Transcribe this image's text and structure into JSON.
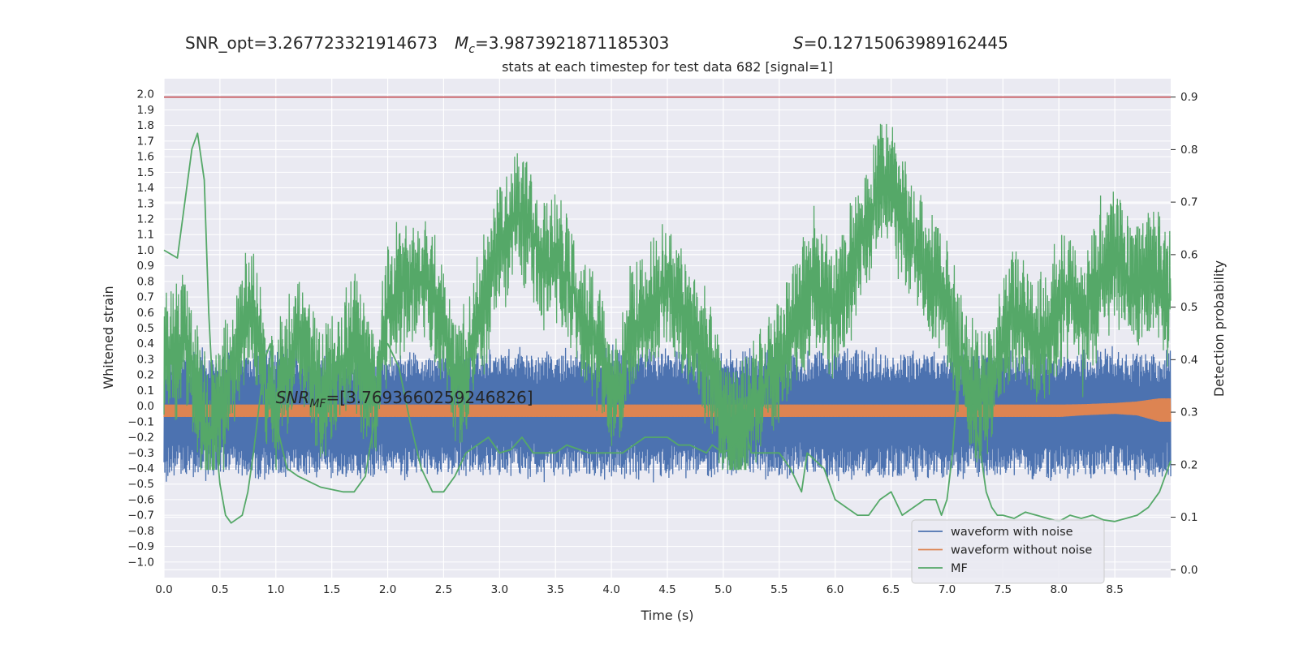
{
  "chart_data": {
    "type": "line",
    "suptitle": {
      "snr_opt": "SNR_opt=3.267723321914673",
      "mc_symbol": "M",
      "mc_sub": "c",
      "mc_value": "=3.9873921871185303",
      "s_symbol": "S",
      "s_value": "=0.12715063989162445"
    },
    "title": "stats at each timestep for test data 682 [signal=1]",
    "xlabel": "Time (s)",
    "ylabel_left": "Whitened strain",
    "ylabel_right": "Detection probability",
    "annotation": {
      "symbol": "SNR",
      "sub": "MF",
      "value": "=[3.7693660259246826]",
      "x": 1.0,
      "y": 0.02
    },
    "xlim": [
      0.0,
      9.0
    ],
    "x_ticks": [
      "0.0",
      "0.5",
      "1.0",
      "1.5",
      "2.0",
      "2.5",
      "3.0",
      "3.5",
      "4.0",
      "4.5",
      "5.0",
      "5.5",
      "6.0",
      "6.5",
      "7.0",
      "7.5",
      "8.0",
      "8.5"
    ],
    "ylim_left": [
      -1.1,
      2.1
    ],
    "y_ticks_left": [
      "-1.0",
      "-0.9",
      "-0.8",
      "-0.7",
      "-0.6",
      "-0.5",
      "-0.4",
      "-0.3",
      "-0.2",
      "-0.1",
      "0.0",
      "0.1",
      "0.2",
      "0.3",
      "0.4",
      "0.5",
      "0.6",
      "0.7",
      "0.8",
      "0.9",
      "1.0",
      "1.1",
      "1.2",
      "1.3",
      "1.4",
      "1.5",
      "1.6",
      "1.7",
      "1.8",
      "1.9",
      "2.0"
    ],
    "ylim_right": [
      -0.015,
      0.935
    ],
    "y_ticks_right": [
      "0.0",
      "0.1",
      "0.2",
      "0.3",
      "0.4",
      "0.5",
      "0.6",
      "0.7",
      "0.8",
      "0.9"
    ],
    "threshold": 0.9,
    "grid": true,
    "legend_position": "lower right",
    "legend": [
      {
        "label": "waveform with noise",
        "color": "#4c72b0"
      },
      {
        "label": "waveform without noise",
        "color": "#dd8452"
      },
      {
        "label": "MF",
        "color": "#55a868"
      }
    ],
    "colors": {
      "noise": "#4c72b0",
      "clean": "#dd8452",
      "mf": "#55a868",
      "prob": "#55a868",
      "threshold": "#c44e52",
      "background": "#eaeaf2",
      "grid": "#ffffff"
    },
    "series": [
      {
        "name": "waveform with noise",
        "axis": "left",
        "envelope": {
          "x": [
            0.0,
            4.5,
            9.0
          ],
          "upper": [
            0.35,
            0.35,
            0.35
          ],
          "lower": [
            -0.45,
            -0.45,
            -0.45
          ]
        }
      },
      {
        "name": "waveform without noise",
        "axis": "left",
        "envelope": {
          "x": [
            0.0,
            8.0,
            8.2,
            8.5,
            8.7,
            8.8,
            8.9,
            9.0
          ],
          "upper": [
            0.01,
            0.01,
            0.012,
            0.02,
            0.03,
            0.04,
            0.05,
            0.05
          ],
          "lower": [
            -0.07,
            -0.07,
            -0.06,
            -0.05,
            -0.06,
            -0.08,
            -0.1,
            -0.1
          ]
        }
      },
      {
        "name": "MF",
        "axis": "left",
        "x": [
          0.0,
          0.12,
          0.25,
          0.3,
          0.36,
          0.4,
          0.45,
          0.5,
          0.55,
          0.6,
          0.7,
          0.75,
          0.8,
          0.85,
          0.9,
          0.95,
          1.0,
          1.1,
          1.2,
          1.4,
          1.6,
          1.7,
          1.8,
          1.9,
          1.95,
          2.0,
          2.1,
          2.2,
          2.3,
          2.4,
          2.5,
          2.55,
          2.6,
          2.7,
          2.8,
          2.9,
          3.0,
          3.1,
          3.2,
          3.3,
          3.5,
          3.6,
          3.8,
          4.0,
          4.1,
          4.3,
          4.5,
          4.6,
          4.7,
          4.85,
          4.9,
          5.0,
          5.1,
          5.2,
          5.25,
          5.35,
          5.5,
          5.6,
          5.7,
          5.75,
          5.9,
          6.0,
          6.1,
          6.2,
          6.3,
          6.35,
          6.4,
          6.5,
          6.6,
          6.7,
          6.8,
          6.85,
          6.9,
          6.95,
          7.0,
          7.05,
          7.1,
          7.15,
          7.2,
          7.3,
          7.35,
          7.4,
          7.45,
          7.5,
          7.6,
          7.7,
          7.8,
          7.9,
          8.0,
          8.1,
          8.2,
          8.3,
          8.4,
          8.5,
          8.6,
          8.7,
          8.8,
          8.9,
          9.0
        ],
        "y": [
          1.0,
          0.95,
          1.65,
          1.75,
          1.45,
          0.6,
          -0.1,
          -0.5,
          -0.7,
          -0.75,
          -0.7,
          -0.55,
          -0.3,
          0.0,
          0.3,
          0.4,
          -0.1,
          -0.4,
          -0.45,
          -0.52,
          -0.55,
          -0.55,
          -0.45,
          0.0,
          0.35,
          0.4,
          0.25,
          -0.1,
          -0.4,
          -0.55,
          -0.55,
          -0.5,
          -0.45,
          -0.3,
          -0.25,
          -0.2,
          -0.3,
          -0.28,
          -0.2,
          -0.3,
          -0.3,
          -0.25,
          -0.3,
          -0.3,
          -0.3,
          -0.2,
          -0.2,
          -0.25,
          -0.25,
          -0.3,
          -0.25,
          -0.3,
          -0.25,
          -0.15,
          -0.3,
          -0.3,
          -0.3,
          -0.4,
          -0.55,
          -0.3,
          -0.4,
          -0.6,
          -0.65,
          -0.7,
          -0.7,
          -0.65,
          -0.6,
          -0.55,
          -0.7,
          -0.65,
          -0.6,
          -0.6,
          -0.6,
          -0.7,
          -0.6,
          -0.3,
          0.2,
          0.4,
          0.1,
          -0.3,
          -0.55,
          -0.65,
          -0.7,
          -0.7,
          -0.72,
          -0.68,
          -0.7,
          -0.72,
          -0.74,
          -0.7,
          -0.72,
          -0.7,
          -0.73,
          -0.74,
          -0.72,
          -0.7,
          -0.65,
          -0.55,
          -0.35
        ]
      },
      {
        "name": "Detection probability",
        "axis": "right",
        "x": [
          0.0,
          0.1,
          0.2,
          0.3,
          0.4,
          0.5,
          0.6,
          0.7,
          0.8,
          0.9,
          1.0,
          1.1,
          1.2,
          1.3,
          1.4,
          1.5,
          1.6,
          1.7,
          1.8,
          1.9,
          2.0,
          2.1,
          2.2,
          2.3,
          2.4,
          2.5,
          2.6,
          2.7,
          2.8,
          2.9,
          3.0,
          3.1,
          3.2,
          3.3,
          3.4,
          3.5,
          3.6,
          3.7,
          3.8,
          3.9,
          4.0,
          4.1,
          4.2,
          4.3,
          4.4,
          4.5,
          4.6,
          4.7,
          4.8,
          4.9,
          5.0,
          5.1,
          5.2,
          5.3,
          5.4,
          5.5,
          5.6,
          5.7,
          5.8,
          5.9,
          6.0,
          6.1,
          6.2,
          6.3,
          6.4,
          6.5,
          6.6,
          6.7,
          6.8,
          6.9,
          7.0,
          7.1,
          7.2,
          7.3,
          7.4,
          7.5,
          7.6,
          7.7,
          7.8,
          7.9,
          8.0,
          8.1,
          8.2,
          8.3,
          8.4,
          8.5,
          8.6,
          8.7,
          8.8,
          8.9,
          9.0
        ],
        "y": [
          0.42,
          0.4,
          0.45,
          0.34,
          0.25,
          0.3,
          0.38,
          0.45,
          0.5,
          0.35,
          0.3,
          0.38,
          0.44,
          0.4,
          0.33,
          0.36,
          0.4,
          0.44,
          0.37,
          0.35,
          0.5,
          0.53,
          0.55,
          0.56,
          0.52,
          0.45,
          0.38,
          0.36,
          0.47,
          0.53,
          0.62,
          0.66,
          0.68,
          0.63,
          0.58,
          0.6,
          0.56,
          0.5,
          0.46,
          0.42,
          0.33,
          0.38,
          0.46,
          0.48,
          0.52,
          0.54,
          0.5,
          0.46,
          0.42,
          0.38,
          0.3,
          0.26,
          0.28,
          0.32,
          0.36,
          0.4,
          0.45,
          0.5,
          0.55,
          0.52,
          0.48,
          0.54,
          0.6,
          0.66,
          0.75,
          0.72,
          0.68,
          0.62,
          0.58,
          0.55,
          0.5,
          0.42,
          0.35,
          0.33,
          0.36,
          0.45,
          0.5,
          0.46,
          0.43,
          0.45,
          0.5,
          0.54,
          0.47,
          0.52,
          0.58,
          0.6,
          0.56,
          0.54,
          0.57,
          0.55,
          0.52
        ],
        "spread": 0.12
      }
    ]
  }
}
